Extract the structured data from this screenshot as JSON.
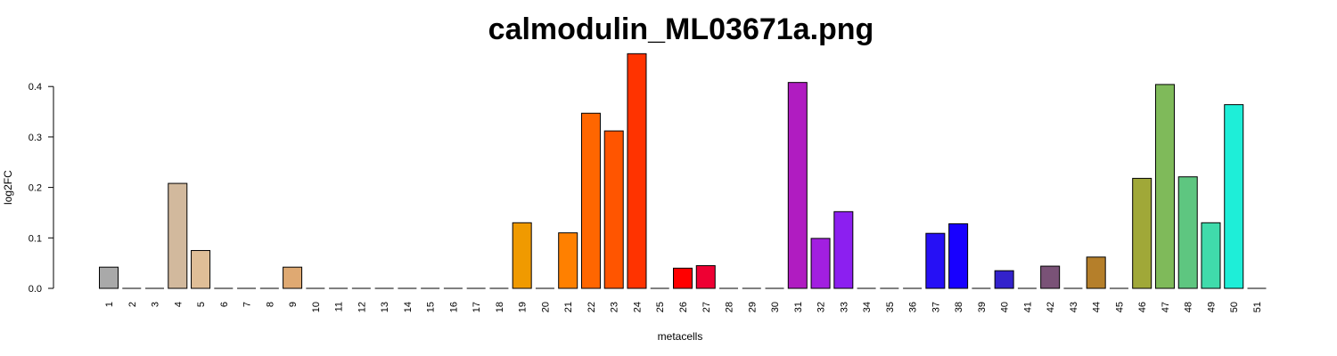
{
  "chart_data": {
    "type": "bar",
    "title": "calmodulin_ML03671a.png",
    "xlabel": "metacells",
    "ylabel": "log2FC",
    "ylim": [
      0,
      0.47
    ],
    "yticks": [
      "0.0",
      "0.1",
      "0.2",
      "0.3",
      "0.4"
    ],
    "grid": false,
    "legend": "none",
    "categories": [
      "1",
      "2",
      "3",
      "4",
      "5",
      "6",
      "7",
      "8",
      "9",
      "10",
      "11",
      "12",
      "13",
      "14",
      "15",
      "16",
      "17",
      "18",
      "19",
      "20",
      "21",
      "22",
      "23",
      "24",
      "25",
      "26",
      "27",
      "28",
      "29",
      "30",
      "31",
      "32",
      "33",
      "34",
      "35",
      "36",
      "37",
      "38",
      "39",
      "40",
      "41",
      "42",
      "43",
      "44",
      "45",
      "46",
      "47",
      "48",
      "49",
      "50",
      "51"
    ],
    "values": [
      0.042,
      0,
      0,
      0.208,
      0.075,
      0,
      0,
      0,
      0.042,
      0,
      0,
      0,
      0,
      0,
      0,
      0,
      0,
      0,
      0.13,
      0,
      0.11,
      0.347,
      0.312,
      0.465,
      0,
      0.04,
      0.045,
      0,
      0,
      0,
      0.408,
      0.099,
      0.152,
      0,
      0,
      0,
      0.109,
      0.128,
      0,
      0.035,
      0,
      0.044,
      0,
      0.062,
      0,
      0.218,
      0.404,
      0.221,
      0.13,
      0.364,
      0
    ],
    "colors": [
      "#a9a9a9",
      "#a9a9a9",
      "#a9a9a9",
      "#d2b99d",
      "#dfbe97",
      "#dfbe97",
      "#dfbe97",
      "#dfae78",
      "#dfa972",
      "#dfa972",
      "#dfa972",
      "#dfa972",
      "#dfa972",
      "#dfa972",
      "#dfa972",
      "#dfa972",
      "#dfa972",
      "#dfa972",
      "#f09a00",
      "#f58c00",
      "#ff8000",
      "#ff6600",
      "#ff5500",
      "#ff3300",
      "#ff2a00",
      "#ff0000",
      "#ee0033",
      "#c80066",
      "#bb1199",
      "#b516b0",
      "#b01cc1",
      "#a21fe0",
      "#8c1ff0",
      "#701ff5",
      "#501ff5",
      "#301ff5",
      "#2610f5",
      "#1800ff",
      "#2a1fd0",
      "#3322cc",
      "#5a3a9a",
      "#7a5277",
      "#8b6344",
      "#b57f2a",
      "#a89a2a",
      "#a0a838",
      "#7fba5a",
      "#5ec680",
      "#40dbab",
      "#1eeed8",
      "#1eeed8"
    ]
  }
}
